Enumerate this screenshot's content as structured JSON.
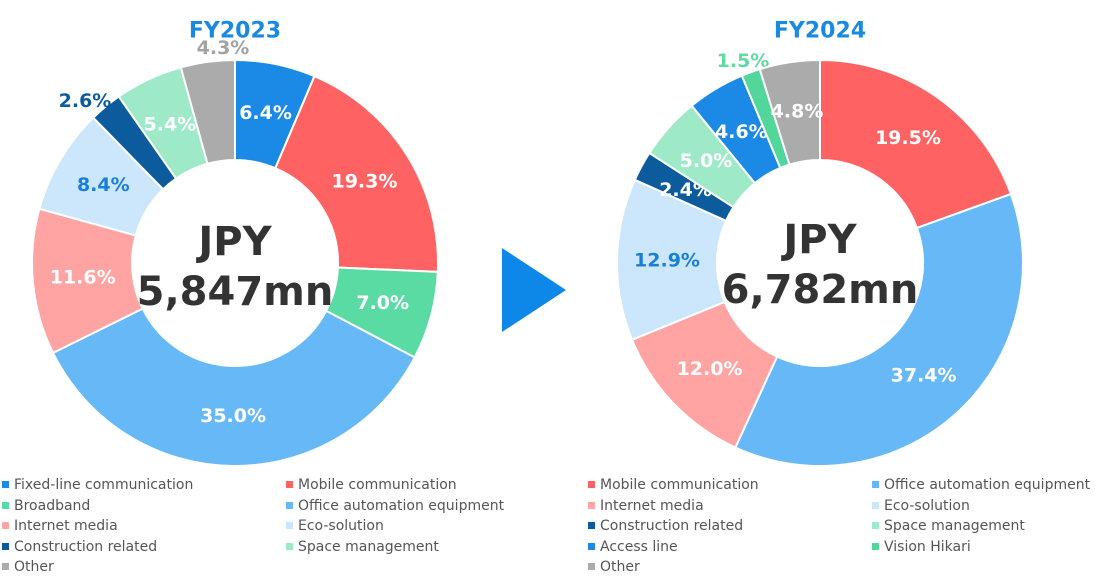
{
  "colors": {
    "title": "#1a8ae0",
    "arrow": "#0d87e8",
    "label_light": "#ffffff",
    "label_dark_blue": "#1a7fd6",
    "label_navy": "#0c5b9c",
    "label_mint": "#5fdba0",
    "label_gray": "#a3a3a3"
  },
  "chart_data": [
    {
      "type": "pie",
      "title": "FY2023",
      "center_label": [
        "JPY",
        "5,847mn"
      ],
      "slices": [
        {
          "name": "Fixed-line communication",
          "value": 6.4,
          "label": "6.4%",
          "color": "#1a8ae6",
          "label_color": "#ffffff"
        },
        {
          "name": "Mobile communication",
          "value": 19.3,
          "label": "19.3%",
          "color": "#ff6262",
          "label_color": "#ffffff"
        },
        {
          "name": "Broadband",
          "value": 7.0,
          "label": "7.0%",
          "color": "#5bdba4",
          "label_color": "#ffffff"
        },
        {
          "name": "Office automation equipment",
          "value": 35.0,
          "label": "35.0%",
          "color": "#66b8f7",
          "label_color": "#ffffff"
        },
        {
          "name": "Internet media",
          "value": 11.6,
          "label": "11.6%",
          "color": "#ffa3a3",
          "label_color": "#ffffff"
        },
        {
          "name": "Eco-solution",
          "value": 8.4,
          "label": "8.4%",
          "color": "#cce6fb",
          "label_color": "#1a7fd6"
        },
        {
          "name": "Construction related",
          "value": 2.6,
          "label": "2.6%",
          "color": "#0c5b9c",
          "label_color": "#0c5b9c",
          "label_outside": true
        },
        {
          "name": "Space management",
          "value": 5.4,
          "label": "5.4%",
          "color": "#9ee9c8",
          "label_color": "#ffffff"
        },
        {
          "name": "Other",
          "value": 4.3,
          "label": "4.3%",
          "color": "#ababab",
          "label_color": "#a3a3a3",
          "label_outside": true
        }
      ],
      "legend": [
        "Fixed-line communication",
        "Mobile communication",
        "Broadband",
        "Office automation equipment",
        "Internet media",
        "Eco-solution",
        "Construction related",
        "Space management",
        "Other"
      ]
    },
    {
      "type": "pie",
      "title": "FY2024",
      "center_label": [
        "JPY",
        "6,782mn"
      ],
      "slices": [
        {
          "name": "Mobile communication",
          "value": 19.5,
          "label": "19.5%",
          "color": "#ff6262",
          "label_color": "#ffffff"
        },
        {
          "name": "Office automation equipment",
          "value": 37.4,
          "label": "37.4%",
          "color": "#66b8f7",
          "label_color": "#ffffff"
        },
        {
          "name": "Internet media",
          "value": 12.0,
          "label": "12.0%",
          "color": "#ffa3a3",
          "label_color": "#ffffff"
        },
        {
          "name": "Eco-solution",
          "value": 12.9,
          "label": "12.9%",
          "color": "#cce6fb",
          "label_color": "#1a7fd6"
        },
        {
          "name": "Construction related",
          "value": 2.4,
          "label": "2.4%",
          "color": "#0c5b9c",
          "label_color": "#ffffff"
        },
        {
          "name": "Space management",
          "value": 5.0,
          "label": "5.0%",
          "color": "#9ee9c8",
          "label_color": "#ffffff"
        },
        {
          "name": "Access line",
          "value": 4.6,
          "label": "4.6%",
          "color": "#1a8ae6",
          "label_color": "#ffffff"
        },
        {
          "name": "Vision Hikari",
          "value": 1.5,
          "label": "1.5%",
          "color": "#52d69a",
          "label_color": "#5fdba0",
          "label_outside": true
        },
        {
          "name": "Other",
          "value": 4.8,
          "label": "4.8%",
          "color": "#ababab",
          "label_color": "#ffffff"
        }
      ],
      "legend": [
        "Mobile communication",
        "Office automation equipment",
        "Internet media",
        "Eco-solution",
        "Construction related",
        "Space management",
        "Access line",
        "Vision Hikari",
        "Other"
      ]
    }
  ]
}
